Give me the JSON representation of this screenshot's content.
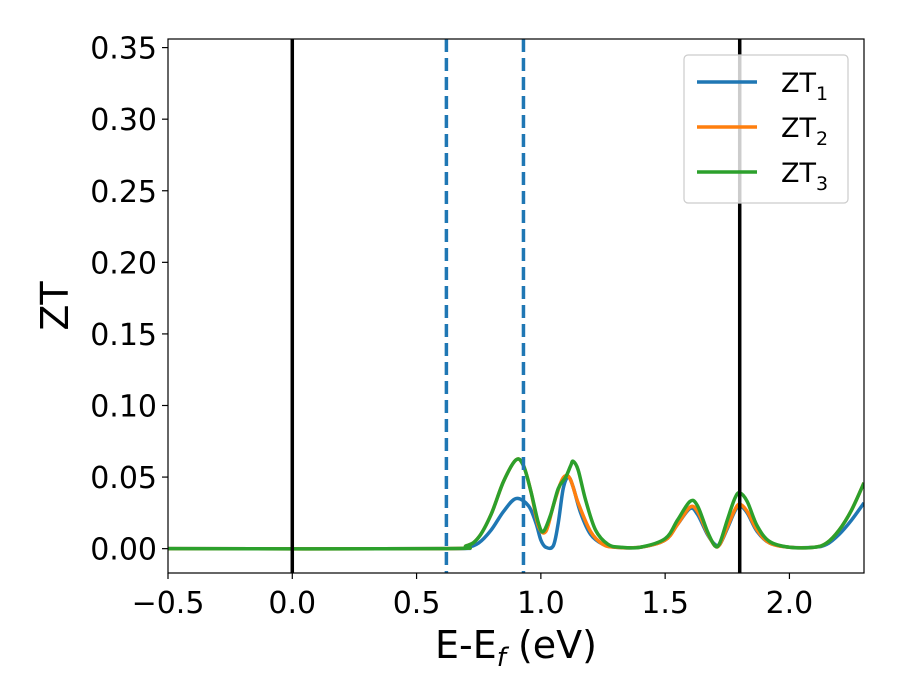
{
  "chart_data": {
    "type": "line",
    "xlabel": "E-E",
    "xlabel_sub": "f",
    "xlabel_unit": " (eV)",
    "ylabel": "ZT",
    "xlim": [
      -0.5,
      2.3
    ],
    "ylim": [
      -0.017,
      0.356
    ],
    "xticks": [
      -0.5,
      0.0,
      0.5,
      1.0,
      1.5,
      2.0
    ],
    "xtick_labels": [
      "−0.5",
      "0.0",
      "0.5",
      "1.0",
      "1.5",
      "2.0"
    ],
    "yticks": [
      0.0,
      0.05,
      0.1,
      0.15,
      0.2,
      0.25,
      0.3,
      0.35
    ],
    "ytick_labels": [
      "0.00",
      "0.05",
      "0.10",
      "0.15",
      "0.20",
      "0.25",
      "0.30",
      "0.35"
    ],
    "legend_position": "top-right",
    "vlines": [
      {
        "x": 0.0,
        "style": "solid",
        "color": "#000000"
      },
      {
        "x": 1.8,
        "style": "solid",
        "color": "#000000"
      },
      {
        "x": 0.62,
        "style": "dashed",
        "color": "#1f77b4"
      },
      {
        "x": 0.93,
        "style": "dashed",
        "color": "#1f77b4"
      }
    ],
    "series": [
      {
        "name": "ZT",
        "sub": "1",
        "color": "#1f77b4",
        "points": [
          [
            -0.5,
            0
          ],
          [
            0.6,
            0
          ],
          [
            0.7,
            0.001
          ],
          [
            0.75,
            0.004
          ],
          [
            0.8,
            0.013
          ],
          [
            0.85,
            0.026
          ],
          [
            0.9,
            0.035
          ],
          [
            0.95,
            0.03
          ],
          [
            0.98,
            0.018
          ],
          [
            1.0,
            0.006
          ],
          [
            1.02,
            0.001
          ],
          [
            1.05,
            0.002
          ],
          [
            1.07,
            0.018
          ],
          [
            1.09,
            0.042
          ],
          [
            1.11,
            0.05
          ],
          [
            1.13,
            0.043
          ],
          [
            1.16,
            0.025
          ],
          [
            1.2,
            0.01
          ],
          [
            1.25,
            0.003
          ],
          [
            1.3,
            0.001
          ],
          [
            1.4,
            0.001
          ],
          [
            1.5,
            0.006
          ],
          [
            1.55,
            0.017
          ],
          [
            1.6,
            0.028
          ],
          [
            1.63,
            0.024
          ],
          [
            1.67,
            0.01
          ],
          [
            1.7,
            0.003
          ],
          [
            1.72,
            0.003
          ],
          [
            1.75,
            0.014
          ],
          [
            1.78,
            0.026
          ],
          [
            1.8,
            0.03
          ],
          [
            1.83,
            0.025
          ],
          [
            1.87,
            0.012
          ],
          [
            1.92,
            0.004
          ],
          [
            2.0,
            0.001
          ],
          [
            2.1,
            0.001
          ],
          [
            2.15,
            0.003
          ],
          [
            2.2,
            0.01
          ],
          [
            2.25,
            0.02
          ],
          [
            2.3,
            0.032
          ]
        ]
      },
      {
        "name": "ZT",
        "sub": "2",
        "color": "#ff7f0e",
        "points": [
          [
            -0.5,
            0
          ],
          [
            0.6,
            0
          ],
          [
            0.7,
            0.002
          ],
          [
            0.75,
            0.008
          ],
          [
            0.8,
            0.024
          ],
          [
            0.85,
            0.047
          ],
          [
            0.9,
            0.062
          ],
          [
            0.93,
            0.058
          ],
          [
            0.96,
            0.04
          ],
          [
            0.99,
            0.016
          ],
          [
            1.02,
            0.012
          ],
          [
            1.05,
            0.03
          ],
          [
            1.08,
            0.046
          ],
          [
            1.1,
            0.051
          ],
          [
            1.12,
            0.048
          ],
          [
            1.15,
            0.032
          ],
          [
            1.2,
            0.012
          ],
          [
            1.25,
            0.003
          ],
          [
            1.3,
            0.001
          ],
          [
            1.4,
            0.001
          ],
          [
            1.5,
            0.006
          ],
          [
            1.55,
            0.017
          ],
          [
            1.6,
            0.029
          ],
          [
            1.63,
            0.026
          ],
          [
            1.67,
            0.011
          ],
          [
            1.7,
            0.002
          ],
          [
            1.72,
            0.003
          ],
          [
            1.75,
            0.015
          ],
          [
            1.78,
            0.027
          ],
          [
            1.8,
            0.031
          ],
          [
            1.83,
            0.026
          ],
          [
            1.87,
            0.013
          ],
          [
            1.92,
            0.004
          ],
          [
            2.0,
            0.001
          ],
          [
            2.1,
            0.001
          ],
          [
            2.15,
            0.004
          ],
          [
            2.2,
            0.013
          ],
          [
            2.25,
            0.027
          ],
          [
            2.3,
            0.046
          ]
        ]
      },
      {
        "name": "ZT",
        "sub": "3",
        "color": "#2ca02c",
        "points": [
          [
            -0.5,
            0
          ],
          [
            0.6,
            0
          ],
          [
            0.7,
            0.002
          ],
          [
            0.75,
            0.008
          ],
          [
            0.8,
            0.024
          ],
          [
            0.85,
            0.047
          ],
          [
            0.9,
            0.062
          ],
          [
            0.93,
            0.058
          ],
          [
            0.96,
            0.04
          ],
          [
            0.99,
            0.018
          ],
          [
            1.01,
            0.012
          ],
          [
            1.04,
            0.024
          ],
          [
            1.07,
            0.042
          ],
          [
            1.1,
            0.05
          ],
          [
            1.12,
            0.058
          ],
          [
            1.13,
            0.061
          ],
          [
            1.15,
            0.055
          ],
          [
            1.18,
            0.034
          ],
          [
            1.22,
            0.013
          ],
          [
            1.27,
            0.003
          ],
          [
            1.32,
            0.001
          ],
          [
            1.4,
            0.001
          ],
          [
            1.5,
            0.007
          ],
          [
            1.55,
            0.02
          ],
          [
            1.6,
            0.033
          ],
          [
            1.63,
            0.03
          ],
          [
            1.67,
            0.012
          ],
          [
            1.7,
            0.002
          ],
          [
            1.72,
            0.004
          ],
          [
            1.75,
            0.02
          ],
          [
            1.78,
            0.035
          ],
          [
            1.8,
            0.039
          ],
          [
            1.83,
            0.033
          ],
          [
            1.87,
            0.016
          ],
          [
            1.92,
            0.005
          ],
          [
            2.0,
            0.001
          ],
          [
            2.1,
            0.001
          ],
          [
            2.15,
            0.004
          ],
          [
            2.2,
            0.013
          ],
          [
            2.25,
            0.027
          ],
          [
            2.3,
            0.046
          ]
        ]
      }
    ]
  }
}
